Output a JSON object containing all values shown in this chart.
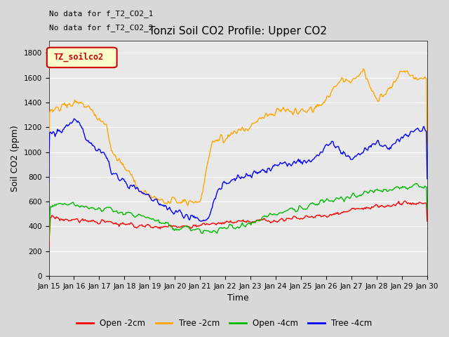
{
  "title": "Tonzi Soil CO2 Profile: Upper CO2",
  "xlabel": "Time",
  "ylabel": "Soil CO2 (ppm)",
  "no_data_text": [
    "No data for f_T2_CO2_1",
    "No data for f_T2_CO2_2"
  ],
  "legend_box_label": "TZ_soilco2",
  "ylim": [
    0,
    1900
  ],
  "yticks": [
    0,
    200,
    400,
    600,
    800,
    1000,
    1200,
    1400,
    1600,
    1800
  ],
  "xtick_labels": [
    "Jan 15",
    "Jan 16",
    "Jan 17",
    "Jan 18",
    "Jan 19",
    "Jan 20",
    "Jan 21",
    "Jan 22",
    "Jan 23",
    "Jan 24",
    "Jan 25",
    "Jan 26",
    "Jan 27",
    "Jan 28",
    "Jan 29",
    "Jan 30"
  ],
  "colors": {
    "open_2cm": "#ff0000",
    "tree_2cm": "#ffa500",
    "open_4cm": "#00bb00",
    "tree_4cm": "#0000ff"
  },
  "legend_entries": [
    "Open -2cm",
    "Tree -2cm",
    "Open -4cm",
    "Tree -4cm"
  ],
  "fig_facecolor": "#d8d8d8",
  "plot_bg_color": "#e8e8e8"
}
